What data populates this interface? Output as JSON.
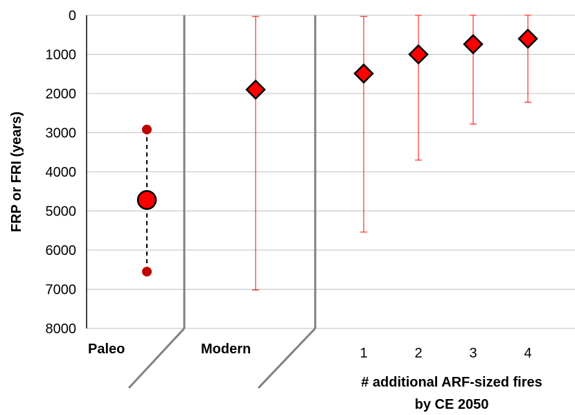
{
  "colors": {
    "marker_fill": "#ff0000",
    "marker_stroke": "#000000",
    "paleo_bound": "#c00000",
    "error_bar": "#ff0000",
    "grid": "#bfbfbf",
    "separator": "#808080"
  },
  "chart_data": {
    "type": "scatter",
    "ylabel": "FRP or FRI (years)",
    "xlabel": "# additional ARF-sized fires by CE 2050",
    "xlabel_lines": [
      "# additional ARF-sized fires",
      "by CE 2050"
    ],
    "y_axis": {
      "range": [
        0,
        8000
      ],
      "inverted": true,
      "ticks": [
        "0",
        "1000",
        "2000",
        "3000",
        "4000",
        "5000",
        "6000",
        "7000",
        "8000"
      ],
      "gridlines": true
    },
    "groups": [
      {
        "label": "Paleo"
      },
      {
        "label": "Modern"
      }
    ],
    "future_categories": [
      "1",
      "2",
      "3",
      "4"
    ],
    "paleo": {
      "value": 4720,
      "lower": 2920,
      "upper": 6550
    },
    "modern": {
      "value": 1900,
      "error_low": 30,
      "error_high": 7020
    },
    "future": [
      {
        "fires": "1",
        "value": 1490,
        "error_low": 30,
        "error_high": 5540
      },
      {
        "fires": "2",
        "value": 1000,
        "error_low": 0,
        "error_high": 3700
      },
      {
        "fires": "3",
        "value": 740,
        "error_low": 0,
        "error_high": 2780
      },
      {
        "fires": "4",
        "value": 600,
        "error_low": 0,
        "error_high": 2220
      }
    ]
  }
}
